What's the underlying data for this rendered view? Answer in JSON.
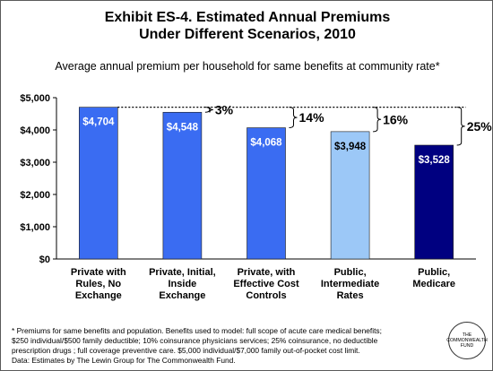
{
  "title_line1": "Exhibit ES-4. Estimated Annual Premiums",
  "title_line2": "Under Different Scenarios, 2010",
  "subtitle": "Average annual premium per household for same benefits at community rate*",
  "chart_data": {
    "type": "bar",
    "categories": [
      [
        "Private with",
        "Rules, No",
        "Exchange"
      ],
      [
        "Private, Initial,",
        "Inside",
        "Exchange"
      ],
      [
        "Private, with",
        "Effective Cost",
        "Controls"
      ],
      [
        "Public,",
        "Intermediate",
        "Rates"
      ],
      [
        "Public,",
        "Medicare"
      ]
    ],
    "values": [
      4704,
      4548,
      4068,
      3948,
      3528
    ],
    "value_labels": [
      "$4,704",
      "$4,548",
      "$4,068",
      "$3,948",
      "$3,528"
    ],
    "bar_colors": [
      "#3a6cf2",
      "#3a6cf2",
      "#3a6cf2",
      "#9cc8f7",
      "#000080"
    ],
    "label_colors": [
      "#ffffff",
      "#ffffff",
      "#ffffff",
      "#000000",
      "#ffffff"
    ],
    "ylim": [
      0,
      5000
    ],
    "yticks": [
      0,
      1000,
      2000,
      3000,
      4000,
      5000
    ],
    "ytick_labels": [
      "$0",
      "$1,000",
      "$2,000",
      "$3,000",
      "$4,000",
      "$5,000"
    ],
    "grid": false,
    "annotations": [
      {
        "bar": 1,
        "text": "3%"
      },
      {
        "bar": 2,
        "text": "14%"
      },
      {
        "bar": 3,
        "text": "16%"
      },
      {
        "bar": 4,
        "text": "25%"
      }
    ]
  },
  "footnote_lines": [
    "* Premiums for same benefits and population. Benefits used to model: full scope of acute care medical benefits;",
    "$250 individual/$500 family deductible; 10% coinsurance physicians services; 25% coinsurance, no deductible",
    "prescription drugs ; full coverage preventive care. $5,000 individual/$7,000 family out-of-pocket cost limit.",
    "Data: Estimates by The Lewin Group for The Commonwealth Fund."
  ],
  "logo_lines": [
    "THE",
    "COMMONWEALTH",
    "FUND"
  ]
}
